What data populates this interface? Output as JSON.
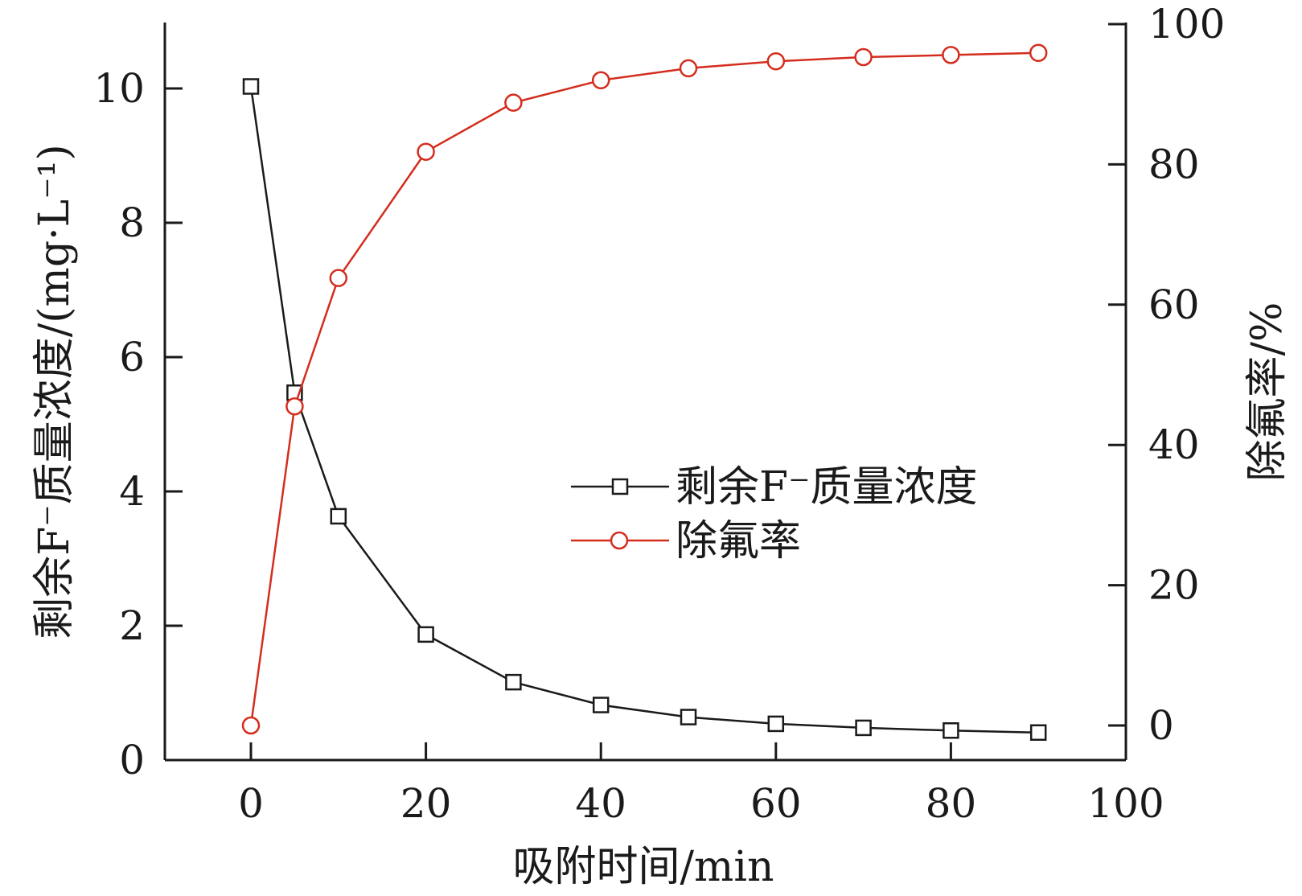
{
  "chart_data": {
    "type": "line",
    "xlabel": "吸附时间/min",
    "ylabel_left": "剩余F⁻质量浓度/(mg·L⁻¹)",
    "ylabel_right": "除氟率/%",
    "x_ticks": [
      0,
      20,
      40,
      60,
      80,
      100
    ],
    "xlim": [
      -10,
      100
    ],
    "ylim_left": [
      0,
      11
    ],
    "y_ticks_left": [
      0,
      2,
      4,
      6,
      8,
      10
    ],
    "ylim_right": [
      -5,
      100
    ],
    "y_ticks_right": [
      0,
      20,
      40,
      60,
      80,
      100
    ],
    "legend_position": "center-right",
    "series": [
      {
        "name": "剩余F⁻质量浓度",
        "axis": "left",
        "color": "#1a1a1a",
        "marker": "square",
        "x": [
          0,
          5,
          10,
          20,
          30,
          40,
          50,
          60,
          70,
          80,
          90
        ],
        "values": [
          10.03,
          5.47,
          3.63,
          1.87,
          1.16,
          0.82,
          0.64,
          0.54,
          0.48,
          0.44,
          0.41
        ]
      },
      {
        "name": "除氟率",
        "axis": "right",
        "color": "#d42d1e",
        "marker": "circle",
        "x": [
          0,
          5,
          10,
          20,
          30,
          40,
          50,
          60,
          70,
          80,
          90
        ],
        "values": [
          0,
          45.5,
          63.8,
          81.8,
          88.8,
          92.0,
          93.7,
          94.7,
          95.3,
          95.6,
          95.9
        ]
      }
    ]
  }
}
